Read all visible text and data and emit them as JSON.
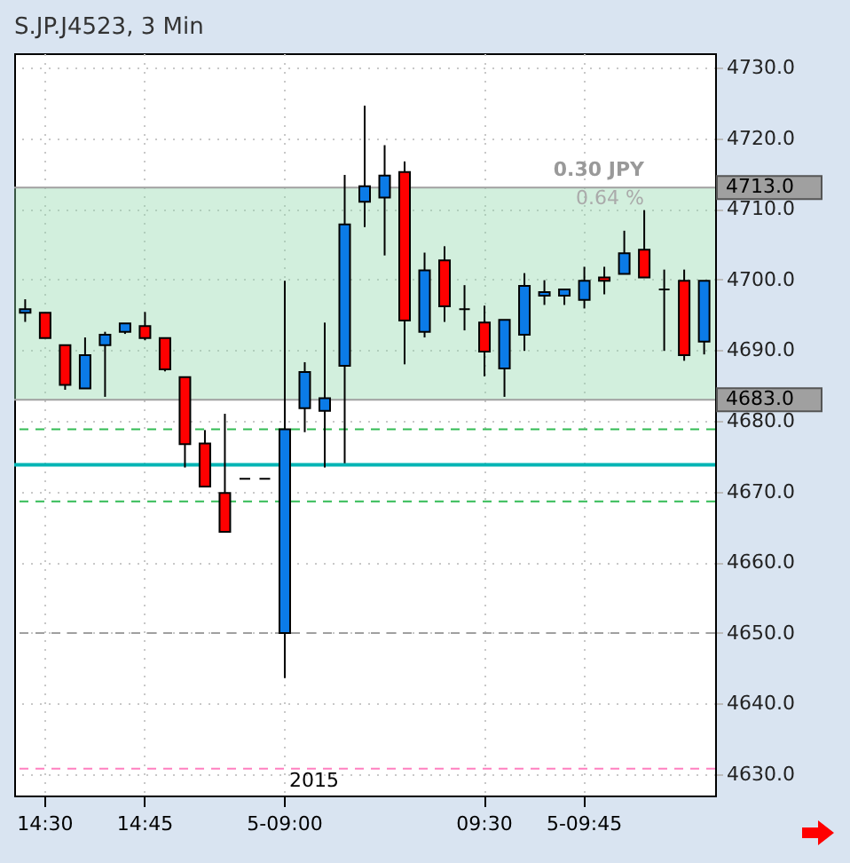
{
  "chart_data": {
    "type": "candlestick",
    "title": "S.JP.J4523, 3 Min",
    "categories": [
      null,
      "14:30",
      null,
      null,
      null,
      null,
      "14:45",
      null,
      null,
      null,
      null,
      null,
      null,
      "5-09:00",
      null,
      null,
      null,
      null,
      null,
      null,
      null,
      null,
      null,
      "09:30",
      null,
      null,
      null,
      null,
      "5-09:45",
      null,
      null,
      null,
      null,
      null,
      null
    ],
    "ohlc": [
      [
        4695.3,
        4697.2,
        4694.0,
        4695.8
      ],
      [
        4695.3,
        4695.3,
        4691.7,
        4691.7
      ],
      [
        4690.7,
        4690.7,
        4684.4,
        4685.1
      ],
      [
        4684.6,
        4691.8,
        4684.6,
        4689.3
      ],
      [
        4690.7,
        4692.6,
        4683.4,
        4692.2
      ],
      [
        4692.6,
        4693.8,
        4692.3,
        4693.8
      ],
      [
        4693.4,
        4695.4,
        4691.4,
        4691.7
      ],
      [
        4691.7,
        4691.7,
        4687.0,
        4687.3
      ],
      [
        4686.2,
        4686.2,
        4673.4,
        4676.7
      ],
      [
        4676.8,
        4678.7,
        4670.7,
        4670.7
      ],
      [
        4669.8,
        4681.0,
        4664.3,
        4664.3
      ],
      [
        4671.8,
        4671.8,
        4671.8,
        4671.8
      ],
      [
        4671.8,
        4671.8,
        4671.8,
        4671.8
      ],
      [
        4650.0,
        4699.8,
        4643.6,
        4678.8
      ],
      [
        4681.8,
        4688.3,
        4678.4,
        4686.9
      ],
      [
        4681.4,
        4693.9,
        4673.4,
        4683.2
      ],
      [
        4687.8,
        4714.8,
        4674.0,
        4707.8
      ],
      [
        4711.0,
        4724.6,
        4707.4,
        4713.2
      ],
      [
        4711.6,
        4719.0,
        4703.4,
        4714.7
      ],
      [
        4715.2,
        4716.7,
        4688.0,
        4694.2
      ],
      [
        4692.6,
        4703.8,
        4691.8,
        4701.3
      ],
      [
        4702.7,
        4704.7,
        4694.0,
        4696.2
      ],
      [
        4695.8,
        4699.2,
        4692.8,
        4695.8
      ],
      [
        4693.9,
        4696.3,
        4686.3,
        4689.8
      ],
      [
        4687.4,
        4694.3,
        4683.4,
        4694.3
      ],
      [
        4692.2,
        4700.9,
        4689.9,
        4699.1
      ],
      [
        4697.7,
        4699.9,
        4696.4,
        4698.2
      ],
      [
        4697.7,
        4698.6,
        4696.4,
        4698.6
      ],
      [
        4697.1,
        4701.8,
        4695.9,
        4699.8
      ],
      [
        4700.3,
        4701.8,
        4697.9,
        4699.8
      ],
      [
        4700.8,
        4706.9,
        4700.8,
        4703.7
      ],
      [
        4704.2,
        4709.8,
        4700.3,
        4700.3
      ],
      [
        4698.6,
        4701.4,
        4689.9,
        4698.6
      ],
      [
        4699.8,
        4701.4,
        4688.5,
        4689.3
      ],
      [
        4691.2,
        4699.8,
        4689.4,
        4699.8
      ]
    ],
    "colors": [
      "#0b7be8",
      "#ff0000",
      "#ff0000",
      "#0b7be8",
      "#0b7be8",
      "#0b7be8",
      "#ff0000",
      "#ff0000",
      "#ff0000",
      "#ff0000",
      "#ff0000",
      "#000000",
      "#000000",
      "#0b7be8",
      "#0b7be8",
      "#0b7be8",
      "#0b7be8",
      "#0b7be8",
      "#0b7be8",
      "#ff0000",
      "#0b7be8",
      "#ff0000",
      "#000000",
      "#ff0000",
      "#0b7be8",
      "#0b7be8",
      "#0b7be8",
      "#0b7be8",
      "#0b7be8",
      "#ff0000",
      "#0b7be8",
      "#ff0000",
      "#000000",
      "#ff0000",
      "#0b7be8"
    ],
    "ylim": [
      4627,
      4732
    ],
    "yticks": [
      {
        "value": 4630,
        "label": "4630.0"
      },
      {
        "value": 4640,
        "label": "4640.0"
      },
      {
        "value": 4650,
        "label": "4650.0"
      },
      {
        "value": 4660,
        "label": "4660.0"
      },
      {
        "value": 4670,
        "label": "4670.0"
      },
      {
        "value": 4680,
        "label": "4680.0"
      },
      {
        "value": 4690,
        "label": "4690.0"
      },
      {
        "value": 4700,
        "label": "4700.0"
      },
      {
        "value": 4710,
        "label": "4710.0"
      },
      {
        "value": 4720,
        "label": "4720.0"
      },
      {
        "value": 4730,
        "label": "4730.0"
      }
    ],
    "ref_lines": [
      {
        "axis": "y",
        "value": 4713,
        "label": "4713.0",
        "color": "#a0a0a0",
        "line_style": "solid"
      },
      {
        "axis": "y",
        "value": 4683,
        "label": "4683.0",
        "color": "#a0a0a0",
        "line_style": "solid"
      },
      {
        "axis": "y",
        "value": 4673.8,
        "color": "#00b4b4",
        "line_style": "solid"
      },
      {
        "axis": "y",
        "value": 4678.8,
        "color": "#33bb55",
        "line_style": "dashed"
      },
      {
        "axis": "y",
        "value": 4668.6,
        "color": "#33bb55",
        "line_style": "dashed"
      },
      {
        "axis": "y",
        "value": 4650,
        "color": "#a0a0a0",
        "line_style": "dashed"
      },
      {
        "axis": "y",
        "value": 4630.8,
        "color": "#ff80c0",
        "line_style": "dashed"
      }
    ],
    "bands": [
      {
        "axis": "y",
        "from": 4683,
        "to": 4713,
        "color": "#8fd6ab"
      }
    ],
    "annotations": [
      "2015",
      "0.30 JPY",
      "0.64 %"
    ],
    "grid": true
  }
}
